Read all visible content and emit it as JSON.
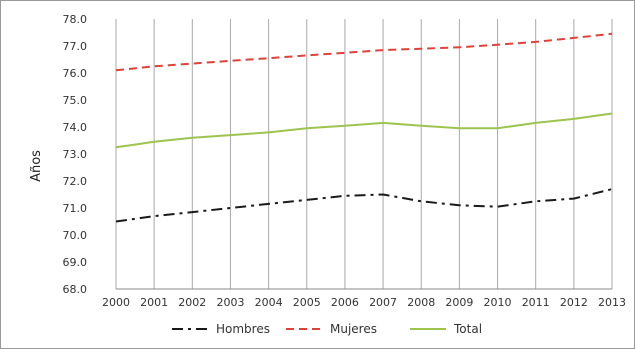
{
  "chart_data": {
    "type": "line",
    "title": "",
    "xlabel": "",
    "ylabel": "Años",
    "categories": [
      "2000",
      "2001",
      "2002",
      "2003",
      "2004",
      "2005",
      "2006",
      "2007",
      "2008",
      "2009",
      "2010",
      "2011",
      "2012",
      "2013"
    ],
    "y_ticks": [
      "68.0",
      "69.0",
      "70.0",
      "71.0",
      "72.0",
      "73.0",
      "74.0",
      "75.0",
      "76.0",
      "77.0",
      "78.0"
    ],
    "ylim": [
      68,
      78
    ],
    "grid": "vertical",
    "legend_position": "bottom",
    "series": [
      {
        "name": "Hombres",
        "color": "#1a1a1a",
        "style": "dash-dot",
        "values": [
          70.5,
          70.7,
          70.85,
          71.0,
          71.15,
          71.3,
          71.45,
          71.5,
          71.25,
          71.1,
          71.05,
          71.25,
          71.35,
          71.7
        ]
      },
      {
        "name": "Mujeres",
        "color": "#e0413a",
        "style": "dashed",
        "values": [
          76.1,
          76.25,
          76.35,
          76.45,
          76.55,
          76.65,
          76.75,
          76.85,
          76.9,
          76.95,
          77.05,
          77.15,
          77.3,
          77.45
        ]
      },
      {
        "name": "Total",
        "color": "#9cc44f",
        "style": "solid",
        "values": [
          73.25,
          73.45,
          73.6,
          73.7,
          73.8,
          73.95,
          74.05,
          74.15,
          74.05,
          73.95,
          73.95,
          74.15,
          74.3,
          74.5
        ]
      }
    ]
  }
}
